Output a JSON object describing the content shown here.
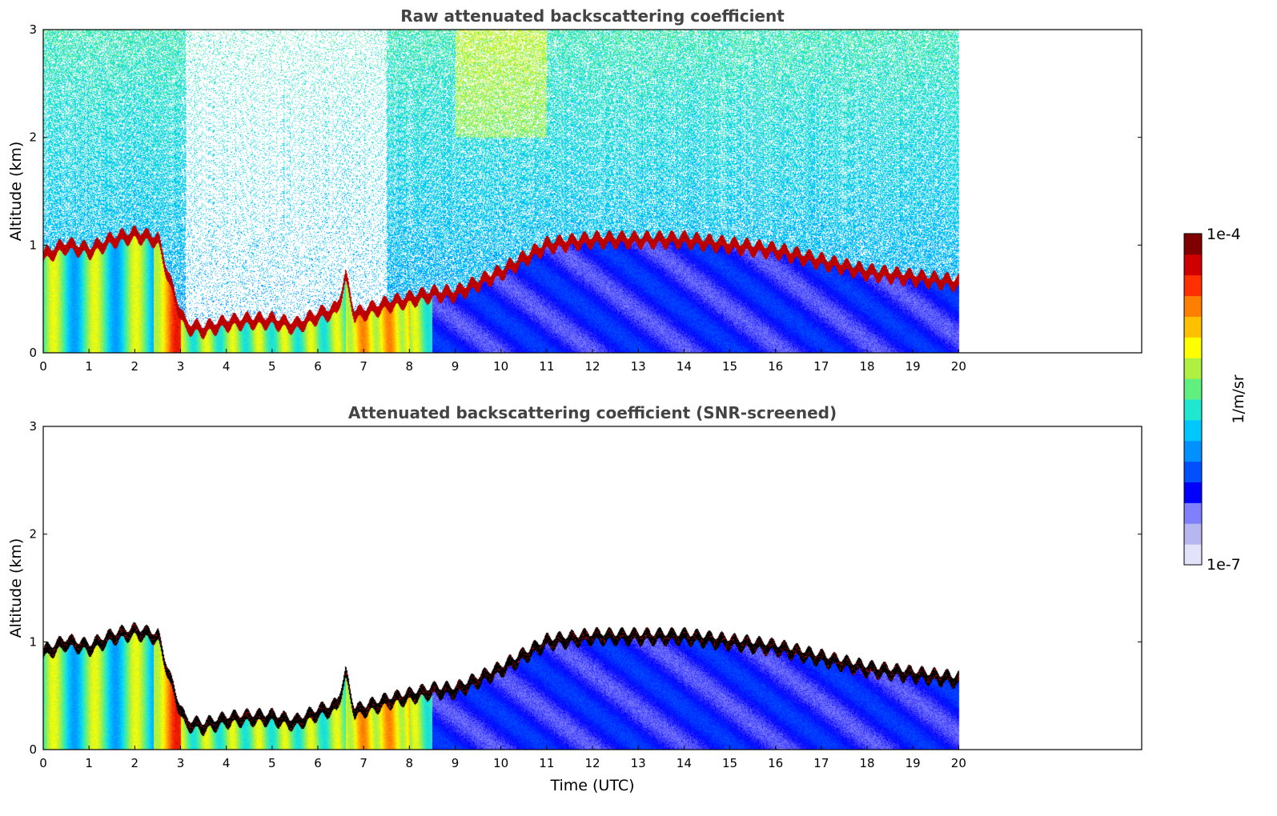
{
  "chart_data": {
    "type": "heatmap",
    "colorbar": {
      "min_label": "1e-7",
      "max_label": "1e-4",
      "unit_label": "1/m/sr",
      "scale": "log",
      "min": 1e-07,
      "max": 0.0001,
      "colors": [
        "#e2e2f8",
        "#b6b6f0",
        "#8080ff",
        "#0000ff",
        "#0050ff",
        "#0090ff",
        "#00c8ff",
        "#20e8d0",
        "#60f080",
        "#b0f040",
        "#ffff00",
        "#ffc000",
        "#ff8000",
        "#ff3000",
        "#d00000",
        "#800000"
      ]
    },
    "xlim": [
      0,
      24
    ],
    "ylim": [
      0,
      3
    ],
    "data_end_time": 20,
    "x_ticks": [
      0,
      1,
      2,
      3,
      4,
      5,
      6,
      7,
      8,
      9,
      10,
      11,
      12,
      13,
      14,
      15,
      16,
      17,
      18,
      19,
      20
    ],
    "y_ticks": [
      0,
      1,
      2,
      3
    ],
    "boundary_layer_top": {
      "x": [
        0,
        0.5,
        1,
        1.5,
        2,
        2.5,
        2.8,
        3.1,
        3.5,
        4,
        4.5,
        5,
        5.5,
        6,
        6.4,
        6.6,
        6.8,
        7.5,
        8,
        8.5,
        9,
        10,
        11,
        12,
        13,
        14,
        15,
        16,
        17,
        18,
        19,
        20
      ],
      "y": [
        0.9,
        1.0,
        0.95,
        1.05,
        1.1,
        1.05,
        0.6,
        0.25,
        0.22,
        0.28,
        0.3,
        0.3,
        0.25,
        0.35,
        0.4,
        0.7,
        0.35,
        0.45,
        0.5,
        0.55,
        0.55,
        0.75,
        1.0,
        1.05,
        1.05,
        1.05,
        1.0,
        0.95,
        0.85,
        0.75,
        0.7,
        0.65
      ]
    },
    "panels": [
      {
        "title": "Raw attenuated backscattering coefficient",
        "ylabel": "Altitude (km)",
        "xlabel": "",
        "screened": false
      },
      {
        "title": "Attenuated backscattering coefficient (SNR-screened)",
        "ylabel": "Altitude (km)",
        "xlabel": "Time (UTC)",
        "screened": true
      }
    ]
  }
}
